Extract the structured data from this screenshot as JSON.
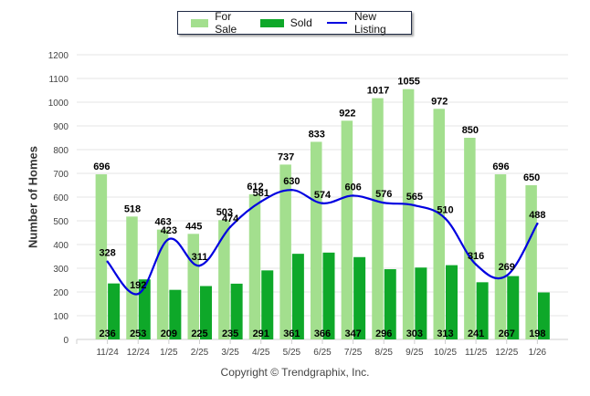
{
  "chart_data": {
    "type": "bar",
    "title": "",
    "xlabel": "",
    "ylabel": "Number of Homes",
    "ylim": [
      0,
      1200
    ],
    "yticks": [
      0,
      100,
      200,
      300,
      400,
      500,
      600,
      700,
      800,
      900,
      1000,
      1100,
      1200
    ],
    "grid": true,
    "legend_position": "top-center",
    "categories": [
      "11/24",
      "12/24",
      "1/25",
      "2/25",
      "3/25",
      "4/25",
      "5/25",
      "6/25",
      "7/25",
      "8/25",
      "9/25",
      "10/25",
      "11/25",
      "12/25",
      "1/26"
    ],
    "series": [
      {
        "name": "For Sale",
        "type": "bar",
        "color": "#a3df8e",
        "values": [
          696,
          518,
          463,
          445,
          503,
          612,
          737,
          833,
          922,
          1017,
          1055,
          972,
          850,
          696,
          650
        ]
      },
      {
        "name": "Sold",
        "type": "bar",
        "color": "#0ea829",
        "values": [
          236,
          253,
          209,
          225,
          235,
          291,
          361,
          366,
          347,
          296,
          303,
          313,
          241,
          267,
          198
        ]
      },
      {
        "name": "New Listing",
        "type": "line",
        "color": "#0000e0",
        "values": [
          328,
          192,
          423,
          311,
          474,
          581,
          630,
          574,
          606,
          576,
          565,
          510,
          316,
          269,
          488
        ]
      }
    ]
  },
  "legend": {
    "items": [
      {
        "label": "For Sale",
        "color": "#a3df8e",
        "kind": "bar"
      },
      {
        "label": "Sold",
        "color": "#0ea829",
        "kind": "bar"
      },
      {
        "label": "New Listing",
        "color": "#0000e0",
        "kind": "line"
      }
    ]
  },
  "footer": {
    "copyright": "Copyright © Trendgraphix, Inc."
  }
}
